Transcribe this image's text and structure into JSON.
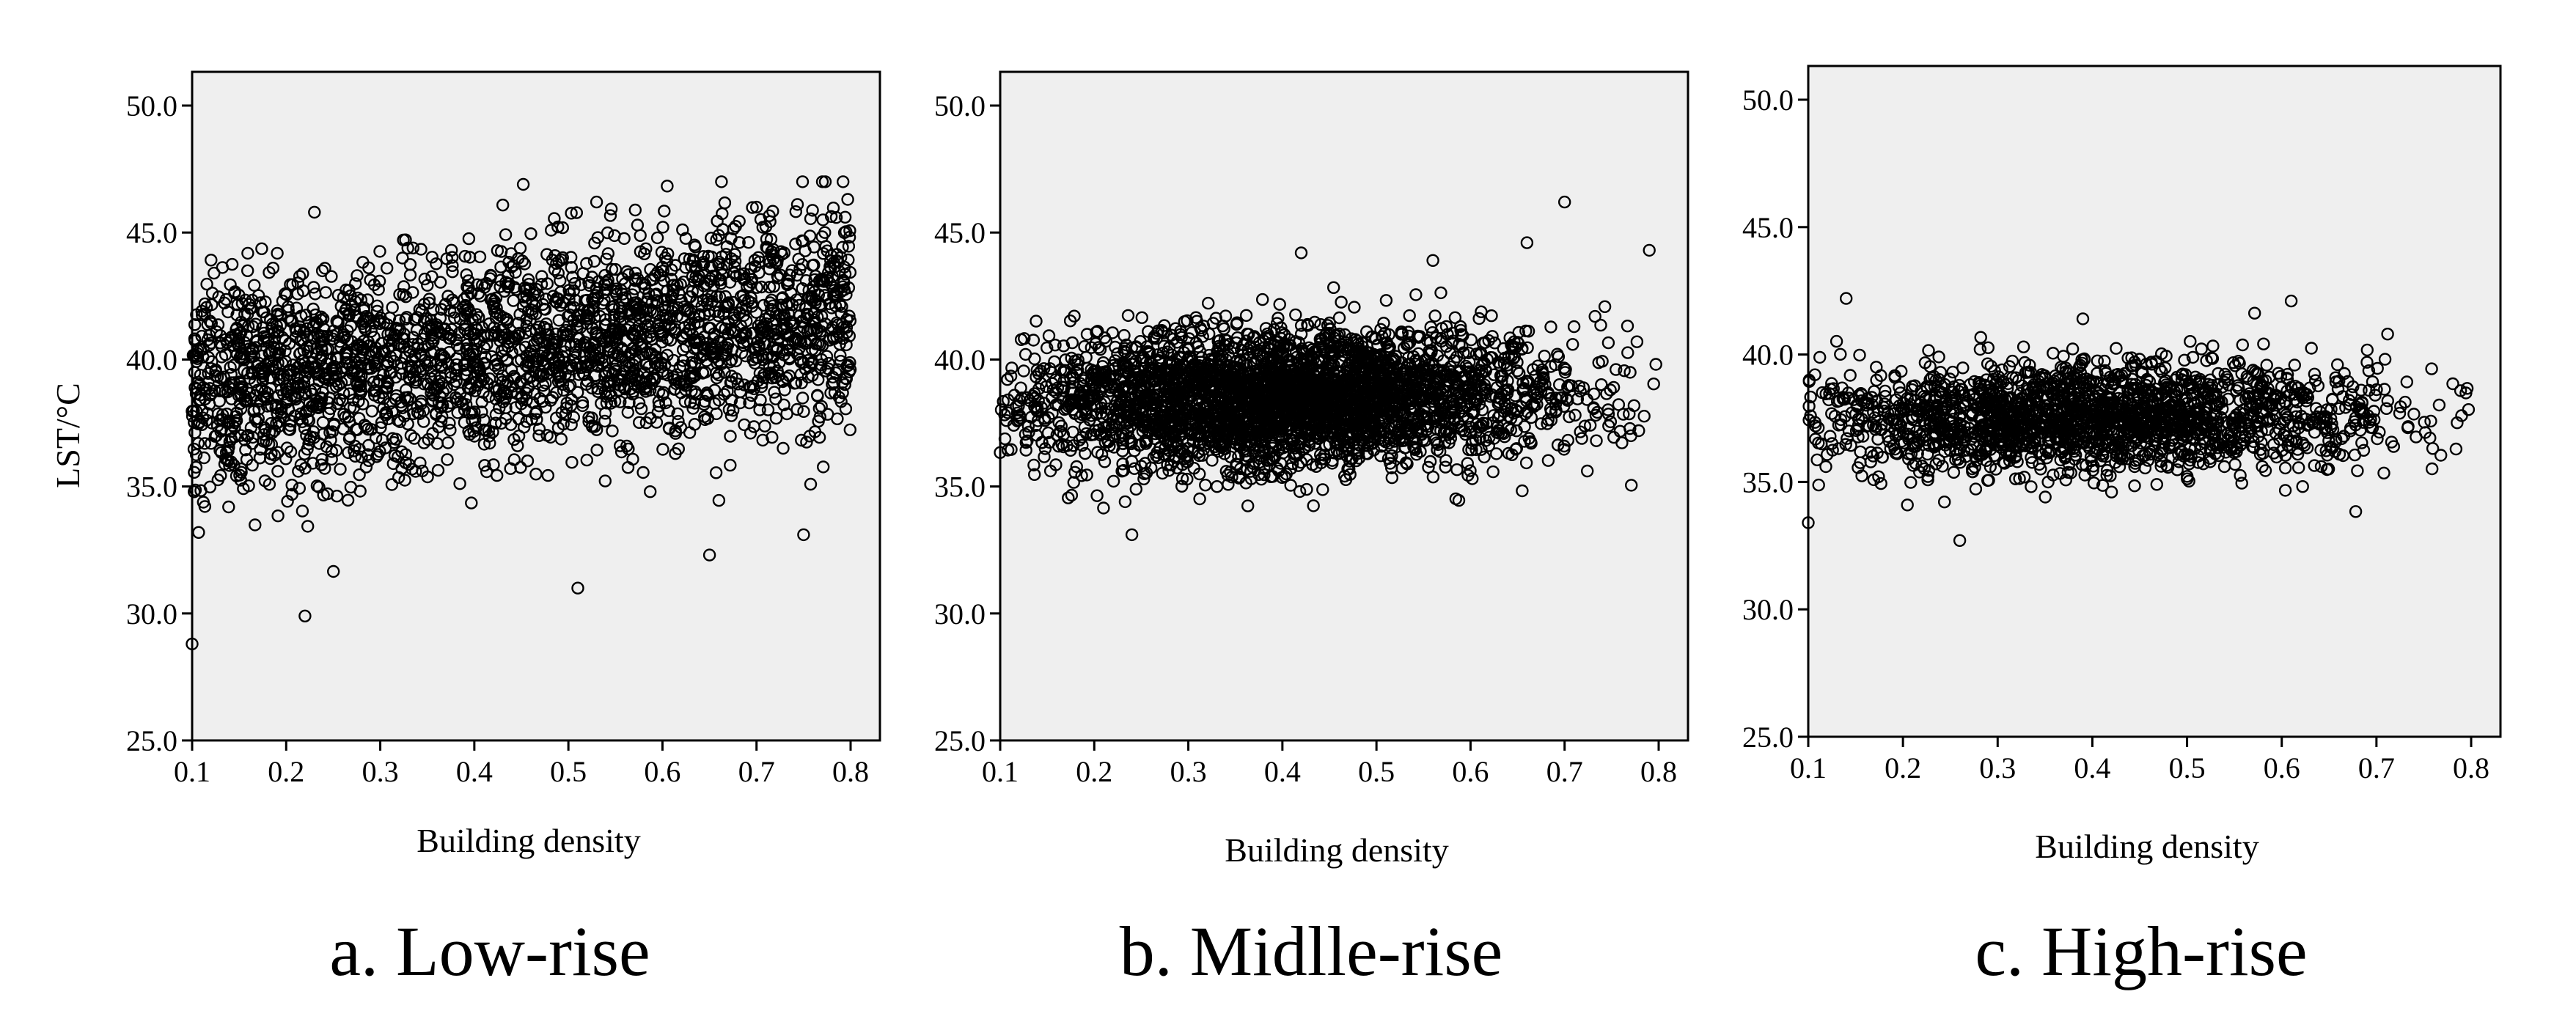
{
  "chart_data": [
    {
      "type": "scatter",
      "caption": "a. Low-rise",
      "xlabel": "Building density",
      "ylabel": "LST/°C",
      "xlim": [
        0.1,
        0.8
      ],
      "ylim": [
        25.0,
        50.0
      ],
      "x_ticks": [
        "0.1",
        "0.2",
        "0.3",
        "0.4",
        "0.5",
        "0.6",
        "0.7",
        "0.8"
      ],
      "y_ticks": [
        "25.0",
        "30.0",
        "35.0",
        "40.0",
        "45.0",
        "50.0"
      ],
      "marker": "open-circle",
      "point_count_approx": 2600,
      "trend": {
        "y_at_x_min": 38.8,
        "y_at_x_max": 41.8
      },
      "spread_sd": 2.1,
      "notable_points": [
        {
          "x": 0.1,
          "y": 28.8
        },
        {
          "x": 0.22,
          "y": 29.9
        },
        {
          "x": 0.23,
          "y": 45.8
        },
        {
          "x": 0.51,
          "y": 31.0
        },
        {
          "x": 0.65,
          "y": 32.3
        },
        {
          "x": 0.77,
          "y": 47.0
        },
        {
          "x": 0.7,
          "y": 46.0
        },
        {
          "x": 0.53,
          "y": 46.2
        },
        {
          "x": 0.75,
          "y": 33.1
        }
      ]
    },
    {
      "type": "scatter",
      "caption": "b. Midlle-rise",
      "xlabel": "Building density",
      "ylabel": "",
      "xlim": [
        0.1,
        0.8
      ],
      "ylim": [
        25.0,
        50.0
      ],
      "x_ticks": [
        "0.1",
        "0.2",
        "0.3",
        "0.4",
        "0.5",
        "0.6",
        "0.7",
        "0.8"
      ],
      "y_ticks": [
        "25.0",
        "30.0",
        "35.0",
        "40.0",
        "45.0",
        "50.0"
      ],
      "marker": "open-circle",
      "point_count_approx": 3200,
      "trend": {
        "y_at_x_min": 38.2,
        "y_at_x_max": 38.8
      },
      "spread_sd": 1.35,
      "notable_points": [
        {
          "x": 0.24,
          "y": 33.1
        },
        {
          "x": 0.7,
          "y": 46.2
        },
        {
          "x": 0.42,
          "y": 44.2
        },
        {
          "x": 0.79,
          "y": 44.3
        },
        {
          "x": 0.66,
          "y": 44.6
        },
        {
          "x": 0.56,
          "y": 43.9
        }
      ]
    },
    {
      "type": "scatter",
      "caption": "c. High-rise",
      "xlabel": "Building density",
      "ylabel": "",
      "xlim": [
        0.1,
        0.8
      ],
      "ylim": [
        25.0,
        50.0
      ],
      "x_ticks": [
        "0.1",
        "0.2",
        "0.3",
        "0.4",
        "0.5",
        "0.6",
        "0.7",
        "0.8"
      ],
      "y_ticks": [
        "25.0",
        "30.0",
        "35.0",
        "40.0",
        "45.0",
        "50.0"
      ],
      "marker": "open-circle",
      "point_count_approx": 1900,
      "trend": {
        "y_at_x_min": 37.4,
        "y_at_x_max": 37.6
      },
      "spread_sd": 1.1,
      "notable_points": [
        {
          "x": 0.14,
          "y": 42.2
        },
        {
          "x": 0.26,
          "y": 32.7
        },
        {
          "x": 0.61,
          "y": 42.1
        },
        {
          "x": 0.39,
          "y": 41.4
        },
        {
          "x": 0.1,
          "y": 33.4
        }
      ]
    }
  ]
}
